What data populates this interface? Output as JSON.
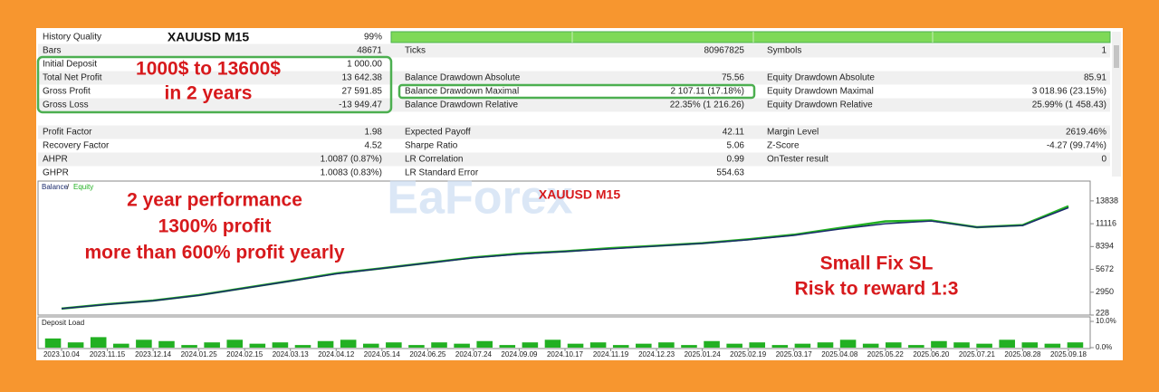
{
  "report": {
    "rows": [
      [
        {
          "label": "History Quality",
          "value": "99%"
        }
      ],
      [
        {
          "label": "Bars",
          "value": "48671"
        },
        {
          "label": "Ticks",
          "value": "80967825"
        },
        {
          "label": "Symbols",
          "value": "1"
        }
      ],
      [
        {
          "label": "Initial Deposit",
          "value": "1 000.00"
        }
      ],
      [
        {
          "label": "Total Net Profit",
          "value": "13 642.38"
        },
        {
          "label": "Balance Drawdown Absolute",
          "value": "75.56"
        },
        {
          "label": "Equity Drawdown Absolute",
          "value": "85.91"
        }
      ],
      [
        {
          "label": "Gross Profit",
          "value": "27 591.85"
        },
        {
          "label": "Balance Drawdown Maximal",
          "value": "2 107.11 (17.18%)"
        },
        {
          "label": "Equity Drawdown Maximal",
          "value": "3 018.96 (23.15%)"
        }
      ],
      [
        {
          "label": "Gross Loss",
          "value": "-13 949.47"
        },
        {
          "label": "Balance Drawdown Relative",
          "value": "22.35% (1 216.26)"
        },
        {
          "label": "Equity Drawdown Relative",
          "value": "25.99% (1 458.43)"
        }
      ],
      [],
      [
        {
          "label": "Profit Factor",
          "value": "1.98"
        },
        {
          "label": "Expected Payoff",
          "value": "42.11"
        },
        {
          "label": "Margin Level",
          "value": "2619.46%"
        }
      ],
      [
        {
          "label": "Recovery Factor",
          "value": "4.52"
        },
        {
          "label": "Sharpe Ratio",
          "value": "5.06"
        },
        {
          "label": "Z-Score",
          "value": "-4.27 (99.74%)"
        }
      ],
      [
        {
          "label": "AHPR",
          "value": "1.0087 (0.87%)"
        },
        {
          "label": "LR Correlation",
          "value": "0.99"
        },
        {
          "label": "OnTester result",
          "value": "0"
        }
      ],
      [
        {
          "label": "GHPR",
          "value": "1.0083 (0.83%)"
        },
        {
          "label": "LR Standard Error",
          "value": "554.63"
        }
      ]
    ]
  },
  "annotations": {
    "symbol": "XAUUSD M15",
    "deposit": [
      "1000$ to 13600$",
      "in 2 years"
    ],
    "performance": [
      "2 year performance",
      "1300% profit",
      "more than 600% profit yearly"
    ],
    "risk": [
      "Small Fix SL",
      "Risk to reward 1:3"
    ]
  },
  "watermark": {
    "brand": "EaForex",
    "symbol": "XAUUSD M15"
  },
  "chart_data": [
    {
      "type": "line",
      "legend_separator": "/",
      "categories": [
        "2023.10.04",
        "2023.11.15",
        "2023.12.14",
        "2024.01.25",
        "2024.02.15",
        "2024.03.13",
        "2024.04.12",
        "2024.05.14",
        "2024.06.25",
        "2024.07.24",
        "2024.09.09",
        "2024.10.17",
        "2024.11.19",
        "2024.12.23",
        "2025.01.24",
        "2025.02.19",
        "2025.03.17",
        "2025.04.08",
        "2025.05.22",
        "2025.06.20",
        "2025.07.21",
        "2025.08.28",
        "2025.09.18"
      ],
      "series": [
        {
          "name": "Equity",
          "color": "#22b022",
          "values": [
            1000,
            1520,
            1950,
            2600,
            3450,
            4300,
            5200,
            5800,
            6450,
            7100,
            7550,
            7820,
            8200,
            8480,
            8800,
            9250,
            9800,
            10600,
            11400,
            11500,
            10700,
            10950,
            13200
          ]
        },
        {
          "name": "Balance",
          "color": "#1a2a6c",
          "values": [
            1000,
            1500,
            1930,
            2570,
            3430,
            4280,
            5140,
            5780,
            6420,
            7060,
            7490,
            7800,
            8120,
            8450,
            8770,
            9200,
            9730,
            10480,
            11120,
            11440,
            10690,
            10900,
            13030
          ]
        }
      ],
      "ylim": [
        228,
        16200
      ],
      "yticks": [
        228,
        2950,
        5672,
        8394,
        11116,
        13838
      ]
    },
    {
      "type": "bar",
      "title": "Deposit Load",
      "color": "#22b022",
      "values": [
        3.5,
        2,
        4,
        1.5,
        3,
        2.5,
        1,
        2,
        3,
        1.5,
        2,
        1,
        2.5,
        3,
        1.5,
        2,
        1,
        2,
        1.5,
        2.5,
        1,
        2,
        3,
        1.5,
        2,
        1,
        1.5,
        2,
        1,
        2.5,
        1.5,
        2,
        1,
        1.5,
        2,
        3,
        1.5,
        2,
        1,
        2.5,
        2,
        1.5,
        3,
        2,
        1.5,
        2
      ],
      "ylim": [
        0,
        10
      ],
      "yticks": [
        {
          "value": 10,
          "label": "10.0%"
        },
        {
          "value": 0,
          "label": "0.0%"
        }
      ]
    }
  ]
}
